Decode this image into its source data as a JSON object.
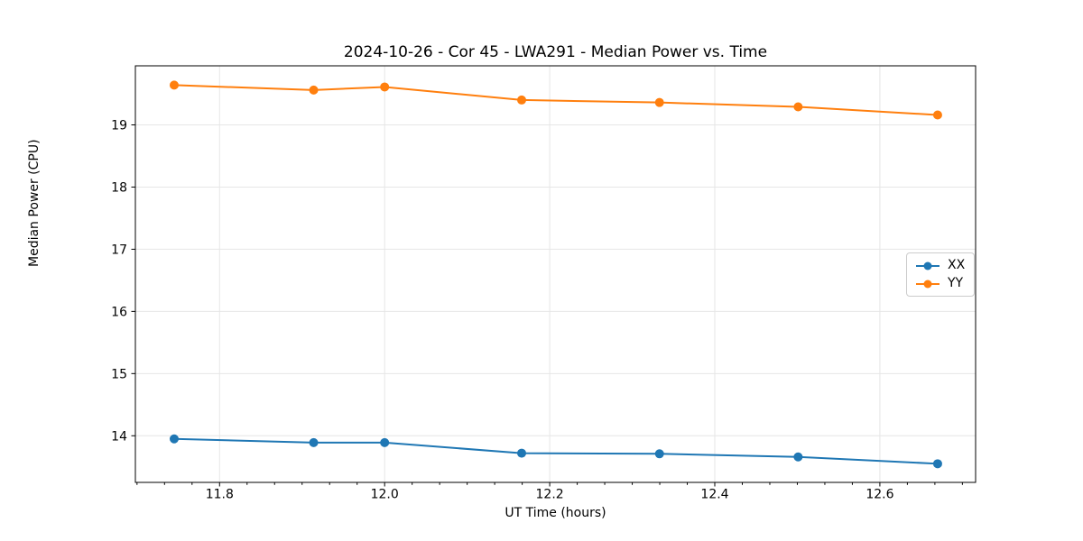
{
  "figure": {
    "background": "#ffffff"
  },
  "chart_data": {
    "type": "line",
    "title": "2024-10-26 - Cor 45 - LWA291 - Median Power vs. Time",
    "xlabel": "UT Time (hours)",
    "ylabel": "Median Power (CPU)",
    "x": [
      11.745,
      11.914,
      12.0,
      12.166,
      12.333,
      12.501,
      12.67
    ],
    "series": [
      {
        "name": "XX",
        "color": "#1f77b4",
        "values": [
          13.95,
          13.89,
          13.89,
          13.72,
          13.71,
          13.66,
          13.55
        ]
      },
      {
        "name": "YY",
        "color": "#ff7f0e",
        "values": [
          19.64,
          19.56,
          19.61,
          19.4,
          19.36,
          19.29,
          19.16
        ]
      }
    ],
    "xlim": [
      11.698,
      12.716
    ],
    "ylim": [
      13.25,
      19.95
    ],
    "xticks": [
      11.8,
      12.0,
      12.2,
      12.4,
      12.6
    ],
    "xtick_labels": [
      "11.8",
      "12.0",
      "12.2",
      "12.4",
      "12.6"
    ],
    "yticks": [
      14,
      15,
      16,
      17,
      18,
      19
    ],
    "ytick_labels": [
      "14",
      "15",
      "16",
      "17",
      "18",
      "19"
    ],
    "x_minor_divisions": 6,
    "grid": true,
    "legend": {
      "position": "center-right",
      "entries": [
        "XX",
        "YY"
      ]
    }
  },
  "style_colors": {
    "grid": "#e6e6e6",
    "spine": "#000000",
    "text": "#000000",
    "legend_border": "#cccccc",
    "series_blue": "#1f77b4",
    "series_orange": "#ff7f0e"
  }
}
